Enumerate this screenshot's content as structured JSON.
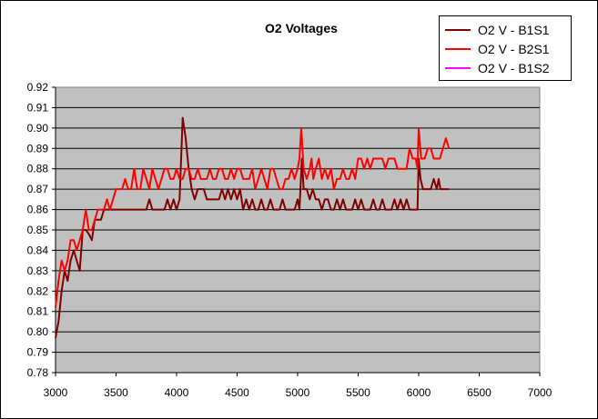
{
  "chart_data": {
    "type": "line",
    "title": "O2 Voltages",
    "xlabel": "",
    "ylabel": "",
    "xlim": [
      3000,
      7000
    ],
    "ylim": [
      0.78,
      0.92
    ],
    "x_ticks": [
      "3000",
      "3500",
      "4000",
      "4500",
      "5000",
      "5500",
      "6000",
      "6500",
      "7000"
    ],
    "y_ticks": [
      "0.92",
      "0.91",
      "0.90",
      "0.89",
      "0.88",
      "0.87",
      "0.86",
      "0.85",
      "0.84",
      "0.83",
      "0.82",
      "0.81",
      "0.80",
      "0.79",
      "0.78"
    ],
    "grid": "horizontal",
    "legend_position": "top-right",
    "plot_background": "#c0c0c0",
    "series": [
      {
        "name": "O2 V - B1S1",
        "color": "#800000",
        "points": [
          [
            3000,
            0.797
          ],
          [
            3025,
            0.805
          ],
          [
            3050,
            0.82
          ],
          [
            3075,
            0.83
          ],
          [
            3100,
            0.825
          ],
          [
            3125,
            0.835
          ],
          [
            3150,
            0.84
          ],
          [
            3175,
            0.835
          ],
          [
            3200,
            0.83
          ],
          [
            3225,
            0.85
          ],
          [
            3250,
            0.85
          ],
          [
            3275,
            0.848
          ],
          [
            3300,
            0.845
          ],
          [
            3325,
            0.855
          ],
          [
            3350,
            0.855
          ],
          [
            3375,
            0.855
          ],
          [
            3400,
            0.86
          ],
          [
            3425,
            0.86
          ],
          [
            3450,
            0.86
          ],
          [
            3500,
            0.86
          ],
          [
            3550,
            0.86
          ],
          [
            3600,
            0.86
          ],
          [
            3650,
            0.86
          ],
          [
            3700,
            0.86
          ],
          [
            3750,
            0.86
          ],
          [
            3775,
            0.865
          ],
          [
            3800,
            0.86
          ],
          [
            3850,
            0.86
          ],
          [
            3900,
            0.86
          ],
          [
            3925,
            0.865
          ],
          [
            3950,
            0.86
          ],
          [
            3975,
            0.865
          ],
          [
            4000,
            0.86
          ],
          [
            4025,
            0.865
          ],
          [
            4050,
            0.905
          ],
          [
            4075,
            0.895
          ],
          [
            4100,
            0.88
          ],
          [
            4125,
            0.87
          ],
          [
            4150,
            0.865
          ],
          [
            4175,
            0.87
          ],
          [
            4200,
            0.87
          ],
          [
            4225,
            0.87
          ],
          [
            4250,
            0.865
          ],
          [
            4275,
            0.865
          ],
          [
            4300,
            0.865
          ],
          [
            4325,
            0.865
          ],
          [
            4350,
            0.865
          ],
          [
            4375,
            0.87
          ],
          [
            4400,
            0.865
          ],
          [
            4425,
            0.87
          ],
          [
            4450,
            0.865
          ],
          [
            4475,
            0.87
          ],
          [
            4500,
            0.865
          ],
          [
            4525,
            0.87
          ],
          [
            4550,
            0.86
          ],
          [
            4575,
            0.865
          ],
          [
            4600,
            0.86
          ],
          [
            4625,
            0.865
          ],
          [
            4650,
            0.86
          ],
          [
            4675,
            0.86
          ],
          [
            4700,
            0.865
          ],
          [
            4725,
            0.86
          ],
          [
            4750,
            0.86
          ],
          [
            4775,
            0.865
          ],
          [
            4800,
            0.86
          ],
          [
            4825,
            0.86
          ],
          [
            4850,
            0.86
          ],
          [
            4875,
            0.865
          ],
          [
            4900,
            0.86
          ],
          [
            4925,
            0.86
          ],
          [
            4950,
            0.86
          ],
          [
            4975,
            0.86
          ],
          [
            5000,
            0.865
          ],
          [
            5015,
            0.86
          ],
          [
            5035,
            0.885
          ],
          [
            5050,
            0.87
          ],
          [
            5075,
            0.87
          ],
          [
            5100,
            0.865
          ],
          [
            5125,
            0.87
          ],
          [
            5150,
            0.865
          ],
          [
            5175,
            0.865
          ],
          [
            5200,
            0.86
          ],
          [
            5225,
            0.865
          ],
          [
            5250,
            0.865
          ],
          [
            5275,
            0.86
          ],
          [
            5300,
            0.86
          ],
          [
            5325,
            0.865
          ],
          [
            5350,
            0.86
          ],
          [
            5375,
            0.865
          ],
          [
            5400,
            0.86
          ],
          [
            5425,
            0.86
          ],
          [
            5450,
            0.86
          ],
          [
            5475,
            0.865
          ],
          [
            5500,
            0.86
          ],
          [
            5525,
            0.865
          ],
          [
            5550,
            0.86
          ],
          [
            5575,
            0.86
          ],
          [
            5600,
            0.86
          ],
          [
            5625,
            0.865
          ],
          [
            5650,
            0.86
          ],
          [
            5675,
            0.86
          ],
          [
            5700,
            0.865
          ],
          [
            5725,
            0.86
          ],
          [
            5750,
            0.86
          ],
          [
            5775,
            0.86
          ],
          [
            5800,
            0.865
          ],
          [
            5825,
            0.86
          ],
          [
            5850,
            0.865
          ],
          [
            5875,
            0.86
          ],
          [
            5900,
            0.865
          ],
          [
            5925,
            0.86
          ],
          [
            5950,
            0.86
          ],
          [
            5975,
            0.86
          ],
          [
            5990,
            0.86
          ],
          [
            6000,
            0.885
          ],
          [
            6015,
            0.875
          ],
          [
            6035,
            0.87
          ],
          [
            6050,
            0.87
          ],
          [
            6075,
            0.87
          ],
          [
            6100,
            0.87
          ],
          [
            6125,
            0.875
          ],
          [
            6150,
            0.87
          ],
          [
            6165,
            0.875
          ],
          [
            6180,
            0.87
          ],
          [
            6200,
            0.87
          ],
          [
            6250,
            0.87
          ]
        ]
      },
      {
        "name": "O2 V - B2S1",
        "color": "#ff0000",
        "points": [
          [
            3000,
            0.812
          ],
          [
            3025,
            0.825
          ],
          [
            3050,
            0.835
          ],
          [
            3075,
            0.83
          ],
          [
            3100,
            0.835
          ],
          [
            3125,
            0.845
          ],
          [
            3150,
            0.845
          ],
          [
            3175,
            0.84
          ],
          [
            3200,
            0.845
          ],
          [
            3225,
            0.85
          ],
          [
            3250,
            0.86
          ],
          [
            3275,
            0.85
          ],
          [
            3300,
            0.85
          ],
          [
            3325,
            0.855
          ],
          [
            3350,
            0.86
          ],
          [
            3375,
            0.86
          ],
          [
            3400,
            0.86
          ],
          [
            3425,
            0.865
          ],
          [
            3450,
            0.86
          ],
          [
            3475,
            0.865
          ],
          [
            3500,
            0.87
          ],
          [
            3525,
            0.87
          ],
          [
            3550,
            0.87
          ],
          [
            3575,
            0.875
          ],
          [
            3600,
            0.87
          ],
          [
            3625,
            0.87
          ],
          [
            3650,
            0.88
          ],
          [
            3675,
            0.87
          ],
          [
            3700,
            0.87
          ],
          [
            3725,
            0.88
          ],
          [
            3750,
            0.875
          ],
          [
            3775,
            0.87
          ],
          [
            3800,
            0.88
          ],
          [
            3825,
            0.875
          ],
          [
            3850,
            0.87
          ],
          [
            3875,
            0.875
          ],
          [
            3900,
            0.88
          ],
          [
            3925,
            0.88
          ],
          [
            3950,
            0.875
          ],
          [
            3975,
            0.875
          ],
          [
            4000,
            0.88
          ],
          [
            4025,
            0.875
          ],
          [
            4050,
            0.875
          ],
          [
            4075,
            0.88
          ],
          [
            4100,
            0.88
          ],
          [
            4125,
            0.875
          ],
          [
            4150,
            0.875
          ],
          [
            4175,
            0.88
          ],
          [
            4200,
            0.875
          ],
          [
            4225,
            0.875
          ],
          [
            4250,
            0.875
          ],
          [
            4275,
            0.88
          ],
          [
            4300,
            0.875
          ],
          [
            4325,
            0.875
          ],
          [
            4350,
            0.88
          ],
          [
            4375,
            0.88
          ],
          [
            4400,
            0.875
          ],
          [
            4425,
            0.875
          ],
          [
            4450,
            0.88
          ],
          [
            4475,
            0.875
          ],
          [
            4500,
            0.88
          ],
          [
            4525,
            0.88
          ],
          [
            4550,
            0.875
          ],
          [
            4575,
            0.875
          ],
          [
            4600,
            0.875
          ],
          [
            4625,
            0.88
          ],
          [
            4650,
            0.87
          ],
          [
            4675,
            0.875
          ],
          [
            4700,
            0.88
          ],
          [
            4725,
            0.875
          ],
          [
            4750,
            0.87
          ],
          [
            4775,
            0.88
          ],
          [
            4800,
            0.88
          ],
          [
            4825,
            0.875
          ],
          [
            4850,
            0.87
          ],
          [
            4875,
            0.87
          ],
          [
            4900,
            0.875
          ],
          [
            4925,
            0.875
          ],
          [
            4950,
            0.88
          ],
          [
            4975,
            0.875
          ],
          [
            5000,
            0.88
          ],
          [
            5015,
            0.885
          ],
          [
            5030,
            0.9
          ],
          [
            5050,
            0.88
          ],
          [
            5075,
            0.875
          ],
          [
            5100,
            0.88
          ],
          [
            5115,
            0.885
          ],
          [
            5130,
            0.875
          ],
          [
            5150,
            0.88
          ],
          [
            5175,
            0.885
          ],
          [
            5200,
            0.875
          ],
          [
            5225,
            0.88
          ],
          [
            5250,
            0.875
          ],
          [
            5275,
            0.88
          ],
          [
            5300,
            0.87
          ],
          [
            5325,
            0.875
          ],
          [
            5350,
            0.875
          ],
          [
            5375,
            0.88
          ],
          [
            5400,
            0.875
          ],
          [
            5425,
            0.875
          ],
          [
            5450,
            0.88
          ],
          [
            5475,
            0.875
          ],
          [
            5500,
            0.885
          ],
          [
            5525,
            0.885
          ],
          [
            5550,
            0.88
          ],
          [
            5575,
            0.885
          ],
          [
            5600,
            0.88
          ],
          [
            5625,
            0.885
          ],
          [
            5650,
            0.885
          ],
          [
            5675,
            0.885
          ],
          [
            5700,
            0.885
          ],
          [
            5725,
            0.88
          ],
          [
            5750,
            0.885
          ],
          [
            5775,
            0.885
          ],
          [
            5800,
            0.885
          ],
          [
            5825,
            0.88
          ],
          [
            5850,
            0.88
          ],
          [
            5875,
            0.88
          ],
          [
            5900,
            0.88
          ],
          [
            5925,
            0.89
          ],
          [
            5950,
            0.885
          ],
          [
            5975,
            0.885
          ],
          [
            5990,
            0.88
          ],
          [
            6000,
            0.9
          ],
          [
            6020,
            0.885
          ],
          [
            6050,
            0.885
          ],
          [
            6075,
            0.89
          ],
          [
            6100,
            0.89
          ],
          [
            6125,
            0.885
          ],
          [
            6150,
            0.885
          ],
          [
            6175,
            0.885
          ],
          [
            6200,
            0.89
          ],
          [
            6225,
            0.895
          ],
          [
            6250,
            0.89
          ]
        ]
      },
      {
        "name": "O2 V - B1S2",
        "color": "#ff00ff",
        "points": []
      }
    ]
  }
}
